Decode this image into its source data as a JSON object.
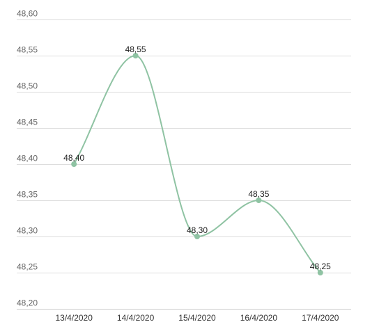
{
  "chart_data": {
    "type": "line",
    "title": "",
    "xlabel": "",
    "ylabel": "",
    "categories": [
      "13/4/2020",
      "14/4/2020",
      "15/4/2020",
      "16/4/2020",
      "17/4/2020"
    ],
    "series": [
      {
        "values": [
          48.4,
          48.55,
          48.3,
          48.35,
          48.25
        ],
        "data_labels": [
          "48,40",
          "48,55",
          "48,30",
          "48,35",
          "48,25"
        ]
      }
    ],
    "ylim": [
      48.2,
      48.6
    ],
    "yticks": [
      48.2,
      48.25,
      48.3,
      48.35,
      48.4,
      48.45,
      48.5,
      48.55,
      48.6
    ],
    "ytick_labels": [
      "48,20",
      "48,25",
      "48,30",
      "48,35",
      "48,40",
      "48,45",
      "48,50",
      "48,55",
      "48,60"
    ],
    "grid": true,
    "legend": "none",
    "line_color": "#8fc3a3",
    "smooth": true
  }
}
